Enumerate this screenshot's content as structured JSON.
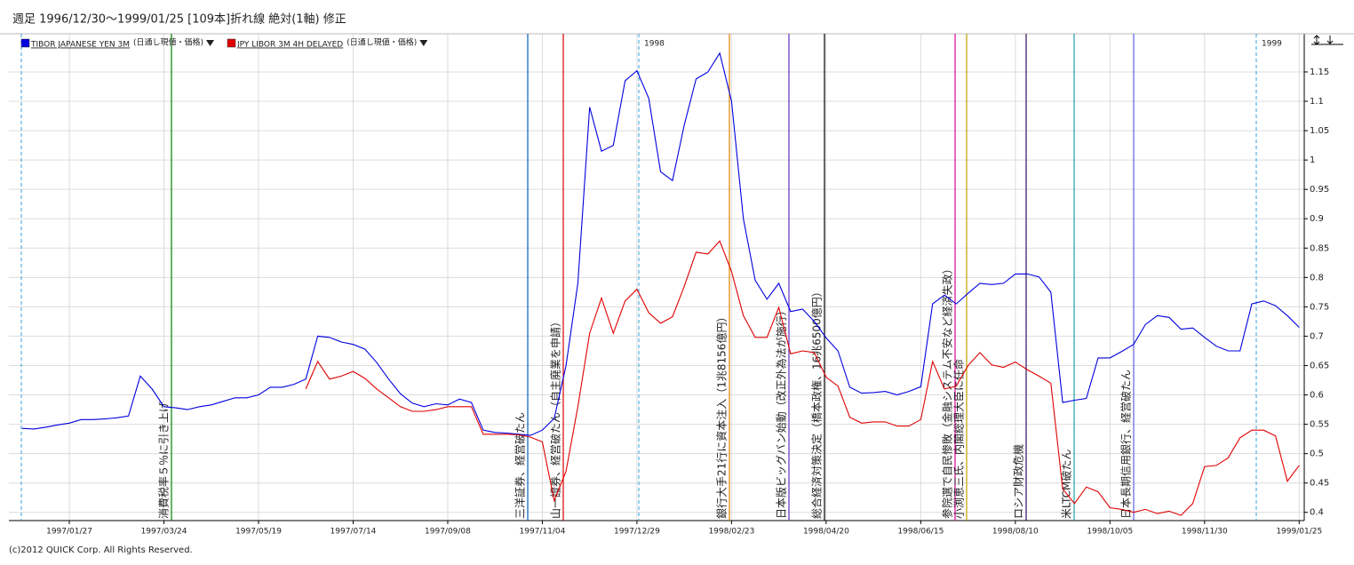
{
  "chart_data": {
    "type": "line",
    "title": "週足  1996/12/30～1999/01/25 [109本]折れ線 絶対(1軸) 修正",
    "footer": "(c)2012 QUICK Corp. All Rights Reserved.",
    "legend_suffix": "(日通し現値・価格)",
    "categories": [
      null,
      null,
      null,
      null,
      "1997/01/27",
      null,
      null,
      null,
      null,
      null,
      null,
      null,
      "1997/03/24",
      null,
      null,
      null,
      null,
      null,
      null,
      null,
      "1997/05/19",
      null,
      null,
      null,
      null,
      null,
      null,
      null,
      "1997/07/14",
      null,
      null,
      null,
      null,
      null,
      null,
      null,
      "1997/09/08",
      null,
      null,
      null,
      null,
      null,
      null,
      null,
      "1997/11/04",
      null,
      null,
      null,
      null,
      null,
      null,
      null,
      "1997/12/29",
      null,
      null,
      null,
      null,
      null,
      null,
      null,
      "1998/02/23",
      null,
      null,
      null,
      null,
      null,
      null,
      null,
      "1998/04/20",
      null,
      null,
      null,
      null,
      null,
      null,
      null,
      "1998/06/15",
      null,
      null,
      null,
      null,
      null,
      null,
      null,
      "1998/08/10",
      null,
      null,
      null,
      null,
      null,
      null,
      null,
      "1998/10/05",
      null,
      null,
      null,
      null,
      null,
      null,
      null,
      "1998/11/30",
      null,
      null,
      null,
      null,
      null,
      null,
      null,
      "1999/01/25"
    ],
    "series": [
      {
        "name": "TIBOR JAPANESE YEN 3M",
        "color": "#0000e0",
        "values": [
          0.543,
          0.542,
          0.545,
          0.549,
          0.552,
          0.558,
          0.558,
          0.559,
          0.561,
          0.564,
          0.632,
          0.61,
          0.58,
          0.578,
          0.575,
          0.58,
          0.583,
          0.589,
          0.595,
          0.595,
          0.6,
          0.613,
          0.613,
          0.618,
          0.627,
          0.7,
          0.698,
          0.69,
          0.686,
          0.678,
          0.655,
          0.627,
          0.602,
          0.586,
          0.58,
          0.585,
          0.583,
          0.593,
          0.587,
          0.54,
          0.536,
          0.535,
          0.533,
          0.531,
          0.54,
          0.56,
          0.65,
          0.79,
          1.09,
          1.015,
          1.025,
          1.135,
          1.152,
          1.105,
          0.98,
          0.965,
          1.06,
          1.138,
          1.15,
          1.182,
          1.1,
          0.9,
          0.795,
          0.763,
          0.79,
          0.742,
          0.746,
          0.725,
          0.697,
          0.675,
          0.613,
          0.603,
          0.604,
          0.606,
          0.6,
          0.606,
          0.614,
          0.755,
          0.77,
          0.755,
          0.773,
          0.79,
          0.788,
          0.79,
          0.806,
          0.806,
          0.801,
          0.775,
          0.587,
          0.591,
          0.594,
          0.663,
          0.663,
          0.674,
          0.686,
          0.72,
          0.735,
          0.732,
          0.712,
          0.714,
          0.698,
          0.683,
          0.675,
          0.675,
          0.755,
          0.76,
          0.752,
          0.735,
          0.715
        ]
      },
      {
        "name": "JPY LIBOR 3M 4H DELAYED",
        "color": "#e00000",
        "values": [
          null,
          null,
          null,
          null,
          null,
          null,
          null,
          null,
          null,
          null,
          null,
          null,
          null,
          null,
          null,
          null,
          null,
          null,
          null,
          null,
          null,
          null,
          null,
          null,
          0.61,
          0.657,
          0.627,
          0.632,
          0.64,
          0.628,
          0.61,
          0.595,
          0.58,
          0.572,
          0.572,
          0.575,
          0.58,
          0.58,
          0.58,
          0.533,
          0.533,
          0.533,
          0.532,
          0.528,
          0.52,
          0.42,
          0.47,
          0.58,
          0.705,
          0.765,
          0.705,
          0.76,
          0.78,
          0.74,
          0.722,
          0.733,
          0.785,
          0.843,
          0.84,
          0.862,
          0.81,
          0.735,
          0.698,
          0.698,
          0.749,
          0.67,
          0.675,
          0.672,
          0.63,
          0.615,
          0.562,
          0.552,
          0.554,
          0.554,
          0.547,
          0.547,
          0.558,
          0.657,
          0.61,
          0.615,
          0.65,
          0.672,
          0.651,
          0.647,
          0.656,
          0.643,
          0.632,
          0.62,
          0.44,
          0.415,
          0.443,
          0.435,
          0.408,
          0.405,
          0.4,
          0.405,
          0.398,
          0.402,
          0.395,
          0.415,
          0.478,
          0.48,
          0.493,
          0.527,
          0.54,
          0.54,
          0.53,
          0.453,
          0.48
        ]
      }
    ],
    "ylim": [
      0.386,
      1.215
    ],
    "yticks": [
      0.4,
      0.45,
      0.5,
      0.55,
      0.6,
      0.65,
      0.7,
      0.75,
      0.8,
      0.85,
      0.9,
      0.95,
      1,
      1.05,
      1.1,
      1.15
    ],
    "grid": true,
    "year_markers": [
      "1998",
      "1999"
    ],
    "events": [
      {
        "text": "消費税率５％に引き上げ",
        "color": "#008000"
      },
      {
        "text": "三洋証券、経営破たん",
        "color": "#0060c0"
      },
      {
        "text": "山一證券、経営破たん（自主廃業を申請）",
        "color": "#e00000"
      },
      {
        "text": "銀行大手21行に資本注入（1兆8156億円）",
        "color": "#e08000"
      },
      {
        "text": "日本版ビッグバン始動（改正外為法が施行）",
        "color": "#6030c0"
      },
      {
        "text": "総合経済対策決定（橋本政権、16兆6500億円）",
        "color": "#000000"
      },
      {
        "text": "参院選で自民惨敗（金融システム不安など経済失政）",
        "color": "#e000a0"
      },
      {
        "text": "小渕恵三氏、内閣総理大臣に任命",
        "color": "#c0a000"
      },
      {
        "text": "ロシア財政危機",
        "color": "#301060"
      },
      {
        "text": "米LTCM破たん",
        "color": "#20a0b0"
      },
      {
        "text": "日本長期信用銀行、経営破たん",
        "color": "#6060e0"
      }
    ]
  }
}
